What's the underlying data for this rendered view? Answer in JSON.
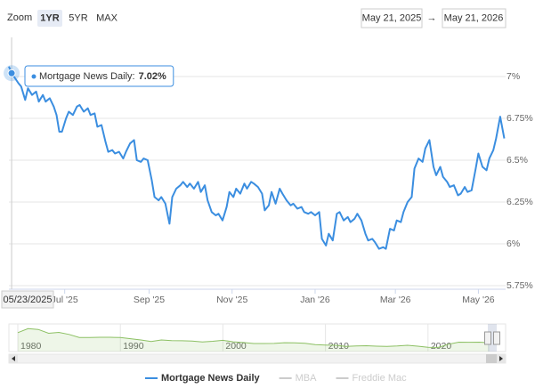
{
  "chart_data": {
    "type": "line",
    "range_selector": {
      "label": "Zoom",
      "buttons": [
        "1YR",
        "5YR",
        "MAX"
      ],
      "selected": 0,
      "from": "May 21, 2025",
      "arrow": "→",
      "to": "May 21, 2026"
    },
    "xlim": [
      0,
      365
    ],
    "xticks": [
      {
        "value": 41,
        "label": "Jul '25"
      },
      {
        "value": 103,
        "label": "Sep '25"
      },
      {
        "value": 164,
        "label": "Nov '25"
      },
      {
        "value": 225,
        "label": "Jan '26"
      },
      {
        "value": 284,
        "label": "Mar '26"
      },
      {
        "value": 345,
        "label": "May '26"
      }
    ],
    "ylim": [
      5.75,
      7.25
    ],
    "yticks": [
      {
        "value": 5.75,
        "label": "5.75%"
      },
      {
        "value": 6,
        "label": "6%"
      },
      {
        "value": 6.25,
        "label": "6.25%"
      },
      {
        "value": 6.5,
        "label": "6.5%"
      },
      {
        "value": 6.75,
        "label": "6.75%"
      },
      {
        "value": 7,
        "label": "7%"
      }
    ],
    "grid": true,
    "x": [
      0,
      2,
      7,
      9,
      12,
      14,
      17,
      20,
      22,
      25,
      27,
      30,
      33,
      35,
      37,
      39,
      42,
      44,
      47,
      50,
      52,
      55,
      58,
      60,
      63,
      65,
      68,
      71,
      73,
      76,
      78,
      81,
      84,
      86,
      89,
      92,
      94,
      97,
      99,
      102,
      105,
      107,
      110,
      112,
      115,
      118,
      120,
      123,
      126,
      128,
      131,
      133,
      136,
      139,
      141,
      144,
      146,
      149,
      152,
      154,
      157,
      160,
      162,
      165,
      167,
      170,
      173,
      175,
      178,
      180,
      183,
      186,
      188,
      191,
      193,
      196,
      199,
      201,
      204,
      207,
      209,
      212,
      215,
      217,
      220,
      222,
      225,
      228,
      230,
      233,
      235,
      238,
      241,
      243,
      246,
      249,
      251,
      254,
      256,
      259,
      262,
      264,
      267,
      269,
      272,
      275,
      277,
      280,
      283,
      285,
      288,
      290,
      293,
      296,
      298,
      301,
      304,
      306,
      309,
      312,
      314,
      317,
      319,
      322,
      324,
      327,
      330,
      332,
      335,
      337,
      340,
      343,
      345,
      348,
      351,
      353,
      356,
      358,
      361,
      364
    ],
    "series": [
      {
        "name": "Mortgage News Daily",
        "color": "#3b8ee0",
        "values": [
          7.06,
          7.02,
          6.96,
          6.94,
          6.86,
          6.93,
          6.89,
          6.91,
          6.85,
          6.89,
          6.85,
          6.87,
          6.82,
          6.77,
          6.67,
          6.67,
          6.75,
          6.79,
          6.77,
          6.82,
          6.83,
          6.79,
          6.81,
          6.77,
          6.78,
          6.7,
          6.71,
          6.61,
          6.55,
          6.56,
          6.54,
          6.55,
          6.51,
          6.55,
          6.6,
          6.62,
          6.5,
          6.49,
          6.51,
          6.5,
          6.38,
          6.28,
          6.26,
          6.28,
          6.24,
          6.12,
          6.28,
          6.33,
          6.35,
          6.37,
          6.34,
          6.36,
          6.33,
          6.37,
          6.31,
          6.35,
          6.26,
          6.19,
          6.17,
          6.18,
          6.14,
          6.22,
          6.31,
          6.28,
          6.33,
          6.3,
          6.36,
          6.33,
          6.37,
          6.36,
          6.34,
          6.3,
          6.2,
          6.23,
          6.31,
          6.24,
          6.33,
          6.3,
          6.26,
          6.23,
          6.24,
          6.21,
          6.22,
          6.19,
          6.18,
          6.19,
          6.17,
          6.19,
          6.03,
          5.99,
          6.06,
          6.02,
          6.18,
          6.19,
          6.14,
          6.16,
          6.13,
          6.15,
          6.18,
          6.14,
          6.06,
          6.02,
          6.03,
          6.01,
          5.97,
          5.98,
          5.97,
          6.09,
          6.08,
          6.14,
          6.13,
          6.19,
          6.25,
          6.28,
          6.45,
          6.51,
          6.49,
          6.57,
          6.62,
          6.46,
          6.41,
          6.46,
          6.4,
          6.37,
          6.34,
          6.35,
          6.29,
          6.3,
          6.34,
          6.31,
          6.32,
          6.45,
          6.54,
          6.46,
          6.44,
          6.51,
          6.56,
          6.63,
          6.76,
          6.63
        ]
      }
    ],
    "inactive_series": [
      {
        "name": "MBA"
      },
      {
        "name": "Freddie Mac"
      }
    ],
    "inactive_color": "#cccccc",
    "tooltip": {
      "series": "Mortgage News Daily:",
      "value": "7.02%",
      "date": "05/23/2025",
      "point": 1
    },
    "navigator": {
      "color": "#8cc063",
      "xlim": [
        1980,
        2026.7
      ],
      "ylim": [
        0,
        20
      ],
      "xticks": [
        1980,
        1990,
        2000,
        2010,
        2020
      ],
      "x": [
        1980,
        1981,
        1982,
        1983,
        1984,
        1985,
        1986,
        1987,
        1988,
        1989,
        1990,
        1991,
        1992,
        1993,
        1994,
        1995,
        1996,
        1997,
        1998,
        1999,
        2000,
        2001,
        2002,
        2003,
        2004,
        2005,
        2006,
        2007,
        2008,
        2009,
        2010,
        2011,
        2012,
        2013,
        2014,
        2015,
        2016,
        2017,
        2018,
        2019,
        2020,
        2021,
        2022,
        2023,
        2024,
        2025,
        2026
      ],
      "values": [
        13.7,
        16.6,
        16.0,
        13.2,
        13.9,
        12.4,
        10.2,
        10.2,
        10.3,
        10.3,
        10.1,
        9.3,
        8.4,
        7.3,
        8.4,
        7.9,
        7.8,
        7.6,
        6.9,
        7.4,
        8.1,
        7.0,
        6.5,
        5.8,
        5.8,
        5.9,
        6.4,
        6.3,
        6.0,
        5.0,
        4.7,
        4.5,
        3.7,
        4.0,
        4.2,
        3.9,
        3.7,
        4.0,
        4.5,
        3.9,
        3.1,
        3.0,
        5.3,
        6.8,
        6.7,
        6.8,
        6.4
      ]
    }
  }
}
